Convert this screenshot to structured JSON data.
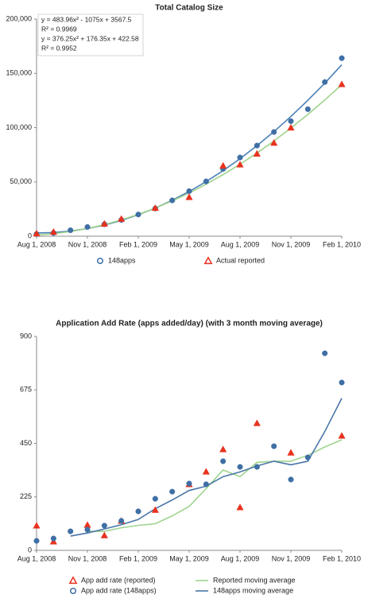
{
  "chart_data": [
    {
      "type": "scatter",
      "title": "Total Catalog Size",
      "categories": [
        "Aug 1, 2008",
        null,
        null,
        "Nov 1, 2008",
        null,
        null,
        "Feb 1, 2009",
        null,
        null,
        "May 1, 2009",
        null,
        null,
        "Aug 1, 2009",
        null,
        null,
        "Nov 1, 2009",
        null,
        null,
        "Feb 1, 2010"
      ],
      "ylim": [
        0,
        200000
      ],
      "yticks": [
        0,
        {
          "value": 50000,
          "label": "50,000"
        },
        {
          "value": 100000,
          "label": "100,000"
        },
        {
          "value": 150000,
          "label": "150,000"
        },
        {
          "value": 200000,
          "label": "200,000"
        }
      ],
      "series": [
        {
          "name": "148apps",
          "color": "#3f6fa5",
          "mode": "markers",
          "marker": "circle",
          "values": [
            2000,
            3000,
            5500,
            8500,
            11000,
            15000,
            20000,
            25500,
            33000,
            41500,
            50500,
            62000,
            72500,
            83500,
            96000,
            106000,
            117000,
            142000,
            164000
          ]
        },
        {
          "name": "Actual reported",
          "color": "#e8321e",
          "mode": "markers",
          "marker": "triangle",
          "values": [
            2500,
            4000,
            null,
            null,
            11500,
            16000,
            null,
            26000,
            null,
            36000,
            null,
            65000,
            66000,
            76000,
            86000,
            100000,
            null,
            null,
            140000
          ]
        }
      ],
      "trendlines": [
        {
          "color": "#4a7fb5",
          "values": [
            3000,
            3350,
            4700,
            7000,
            10300,
            14500,
            19800,
            25900,
            33100,
            41200,
            50300,
            60400,
            71400,
            83400,
            96300,
            110300,
            125200,
            141000,
            157900
          ]
        },
        {
          "color": "#9fd38a",
          "values": [
            1000,
            2300,
            4300,
            7100,
            10700,
            15000,
            20100,
            25900,
            32500,
            39800,
            47900,
            56700,
            66300,
            76600,
            87700,
            99600,
            112200,
            125500,
            139600
          ]
        }
      ],
      "annotations": [
        "y = 483.96x² - 1075x + 3567.5",
        "R² = 0.9969",
        "y = 376.25x² + 176.35x + 422.58",
        "R² = 0.9952"
      ]
    },
    {
      "type": "scatter",
      "title": "Application Add Rate (apps added/day) (with 3 month moving average)",
      "categories": [
        "Aug 1, 2008",
        null,
        null,
        "Nov 1, 2008",
        null,
        null,
        "Feb 1, 2009",
        null,
        null,
        "May 1, 2009",
        null,
        null,
        "Aug 1, 2009",
        null,
        null,
        "Nov 1, 2009",
        null,
        null,
        "Feb 1, 2010"
      ],
      "ylim": [
        0,
        900
      ],
      "yticks": [
        0,
        225,
        450,
        675,
        900
      ],
      "series": [
        {
          "name": "App add rate (reported)",
          "color": "#e8321e",
          "mode": "markers",
          "marker": "triangle",
          "values": [
            104,
            37,
            null,
            107,
            63,
            124,
            null,
            170,
            null,
            278,
            331,
            425,
            181,
            535,
            null,
            411,
            null,
            null,
            482
          ]
        },
        {
          "name": "App add rate (148apps)",
          "color": "#3f6fa5",
          "mode": "markers",
          "marker": "circle",
          "values": [
            40,
            50,
            80,
            87,
            104,
            124,
            164,
            217,
            247,
            281,
            278,
            375,
            351,
            351,
            438,
            298,
            391,
            829,
            706
          ]
        },
        {
          "name": "Reported moving average",
          "color": "#9ed48e",
          "mode": "line",
          "values": [
            null,
            null,
            null,
            80,
            80,
            95,
            105,
            112,
            145,
            185,
            260,
            338,
            310,
            370,
            375,
            375,
            400,
            435,
            465
          ]
        },
        {
          "name": "148apps moving average",
          "color": "#4a76a8",
          "mode": "line",
          "values": [
            null,
            null,
            60,
            73,
            90,
            108,
            130,
            175,
            212,
            252,
            270,
            310,
            330,
            355,
            375,
            360,
            375,
            500,
            640
          ]
        }
      ]
    }
  ]
}
